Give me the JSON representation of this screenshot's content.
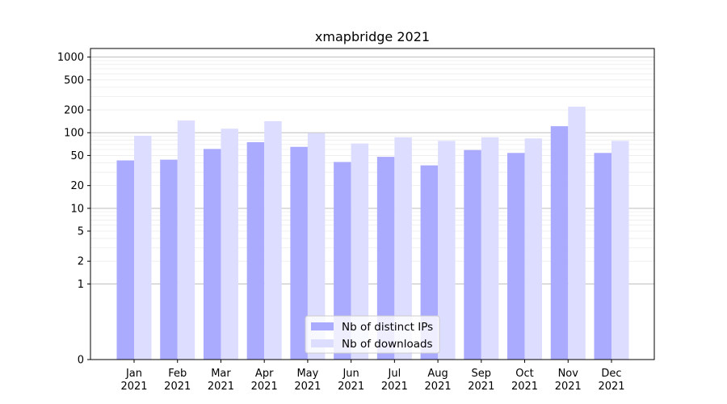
{
  "chart_data": {
    "type": "bar",
    "title": "xmapbridge 2021",
    "xlabel": "",
    "ylabel": "",
    "yscale": "symlog",
    "ylim": [
      0,
      1300
    ],
    "yticks": [
      0,
      1,
      2,
      5,
      10,
      20,
      50,
      100,
      200,
      500,
      1000
    ],
    "ytick_labels": [
      "0",
      "1",
      "2",
      "5",
      "10",
      "20",
      "50",
      "100",
      "200",
      "500",
      "1000"
    ],
    "categories": [
      "Jan 2021",
      "Feb 2021",
      "Mar 2021",
      "Apr 2021",
      "May 2021",
      "Jun 2021",
      "Jul 2021",
      "Aug 2021",
      "Sep 2021",
      "Oct 2021",
      "Nov 2021",
      "Dec 2021"
    ],
    "category_lines": [
      [
        "Jan",
        "2021"
      ],
      [
        "Feb",
        "2021"
      ],
      [
        "Mar",
        "2021"
      ],
      [
        "Apr",
        "2021"
      ],
      [
        "May",
        "2021"
      ],
      [
        "Jun",
        "2021"
      ],
      [
        "Jul",
        "2021"
      ],
      [
        "Aug",
        "2021"
      ],
      [
        "Sep",
        "2021"
      ],
      [
        "Oct",
        "2021"
      ],
      [
        "Nov",
        "2021"
      ],
      [
        "Dec",
        "2021"
      ]
    ],
    "series": [
      {
        "name": "Nb of distinct IPs",
        "color": "#aaaaff",
        "values": [
          43,
          44,
          61,
          75,
          65,
          41,
          48,
          37,
          59,
          54,
          122,
          54
        ]
      },
      {
        "name": "Nb of downloads",
        "color": "#ddddff",
        "values": [
          91,
          145,
          113,
          142,
          99,
          72,
          87,
          78,
          87,
          84,
          221,
          78
        ]
      }
    ],
    "legend_position": "lower-center",
    "grid": true
  }
}
